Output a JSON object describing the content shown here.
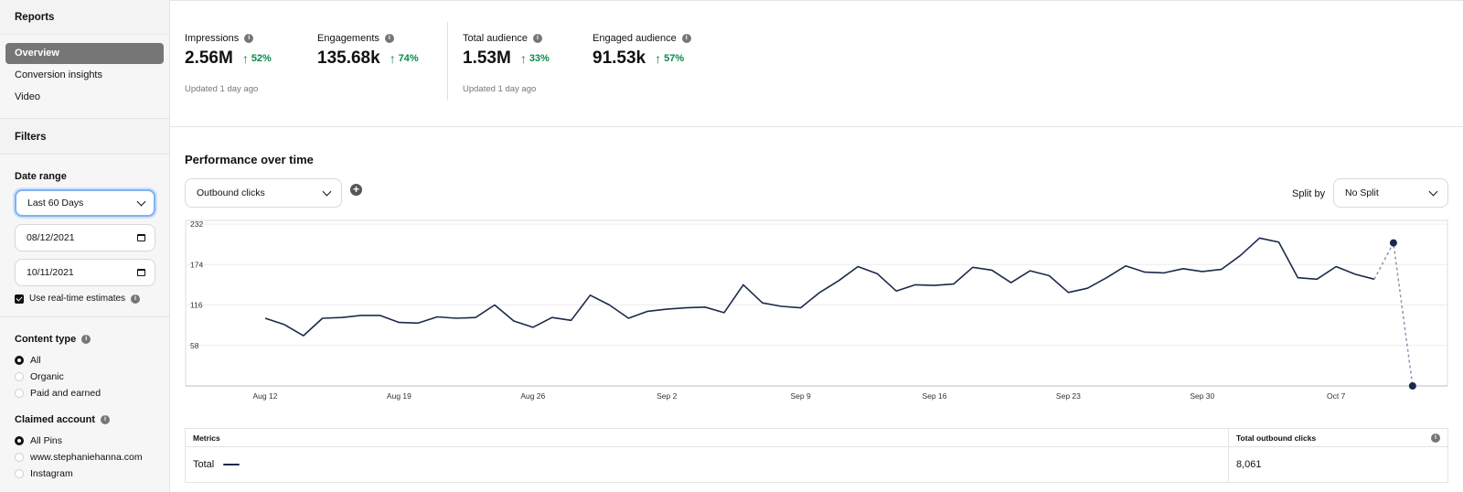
{
  "sidebar": {
    "reports_heading": "Reports",
    "nav": [
      {
        "label": "Overview",
        "active": true
      },
      {
        "label": "Conversion insights",
        "active": false
      },
      {
        "label": "Video",
        "active": false
      }
    ],
    "filters_heading": "Filters",
    "date_range": {
      "label": "Date range",
      "selected": "Last 60 Days",
      "start": "08/12/2021",
      "end": "10/11/2021",
      "realtime_label": "Use real-time estimates"
    },
    "content_type": {
      "label": "Content type",
      "options": [
        {
          "label": "All",
          "selected": true
        },
        {
          "label": "Organic",
          "selected": false
        },
        {
          "label": "Paid and earned",
          "selected": false
        }
      ]
    },
    "claimed_account": {
      "label": "Claimed account",
      "options": [
        {
          "label": "All Pins",
          "selected": true
        },
        {
          "label": "www.stephaniehanna.com",
          "selected": false
        },
        {
          "label": "Instagram",
          "selected": false
        }
      ]
    }
  },
  "stats": {
    "group1": [
      {
        "label": "Impressions",
        "value": "2.56M",
        "change": "52%"
      },
      {
        "label": "Engagements",
        "value": "135.68k",
        "change": "74%"
      }
    ],
    "group1_updated": "Updated 1 day ago",
    "group2": [
      {
        "label": "Total audience",
        "value": "1.53M",
        "change": "33%"
      },
      {
        "label": "Engaged audience",
        "value": "91.53k",
        "change": "57%"
      }
    ],
    "group2_updated": "Updated 1 day ago"
  },
  "performance": {
    "title": "Performance over time",
    "metric_selected": "Outbound clicks",
    "split_label": "Split by",
    "split_selected": "No Split"
  },
  "chart_data": {
    "type": "line",
    "y_ticks": [
      "232",
      "174",
      "116",
      "58"
    ],
    "ylim": [
      0,
      232
    ],
    "x_tick_labels": [
      "Aug 12",
      "Aug 19",
      "Aug 26",
      "Sep 2",
      "Sep 9",
      "Sep 16",
      "Sep 23",
      "Sep 30",
      "Oct 7"
    ],
    "x_start": "Aug 12",
    "grid": true,
    "series": [
      {
        "values": [
          97,
          88,
          72,
          97,
          98,
          101,
          101,
          91,
          90,
          99,
          97,
          98,
          116,
          93,
          84,
          98,
          94,
          130,
          116,
          97,
          107,
          110,
          112,
          113,
          105,
          145,
          119,
          114,
          112,
          134,
          151,
          171,
          161,
          136,
          145,
          144,
          146,
          170,
          166,
          148,
          165,
          158,
          134,
          140,
          155,
          172,
          163,
          162,
          168,
          164,
          167,
          187,
          212,
          206,
          155,
          153,
          171,
          160,
          153
        ]
      },
      {
        "estimate": true,
        "values": [
          {
            "day": 58,
            "value": 153
          },
          {
            "day": 59,
            "value": 205
          },
          {
            "day": 60,
            "value": 0
          }
        ]
      }
    ]
  },
  "metrics_table": {
    "col1_header": "Metrics",
    "col2_header": "Total outbound clicks",
    "row_label": "Total",
    "row_value": "8,061"
  },
  "colors": {
    "line": "#1b2a4a",
    "estimate_line": "#8a96b0",
    "positive": "#0a8a4a",
    "active_nav": "#767676"
  }
}
